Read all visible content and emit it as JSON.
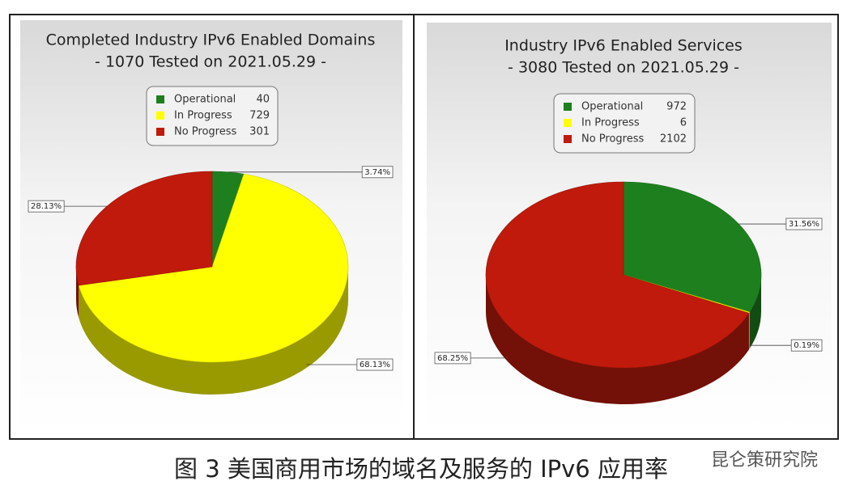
{
  "chart_data": [
    {
      "type": "pie3d",
      "title": "Completed Industry IPv6 Enabled Domains",
      "subtitle": "- 1070 Tested on 2021.05.29 -",
      "categories": [
        "Operational",
        "In Progress",
        "No Progress"
      ],
      "counts": [
        40,
        729,
        301
      ],
      "values": [
        3.74,
        68.13,
        28.13
      ],
      "value_labels": [
        "3.74%",
        "68.13%",
        "28.13%"
      ],
      "colors": [
        "#1e7f1e",
        "#ffff00",
        "#c01a0c"
      ]
    },
    {
      "type": "pie3d",
      "title": "Industry IPv6 Enabled Services",
      "subtitle": "- 3080 Tested on 2021.05.29 -",
      "categories": [
        "Operational",
        "In Progress",
        "No Progress"
      ],
      "counts": [
        972,
        6,
        2102
      ],
      "values": [
        31.56,
        0.19,
        68.25
      ],
      "value_labels": [
        "31.56%",
        "0.19%",
        "68.25%"
      ],
      "colors": [
        "#1e7f1e",
        "#ffff00",
        "#c01a0c"
      ]
    }
  ],
  "caption": "图 3 美国商用市场的域名及服务的 IPv6 应用率",
  "watermark": "昆仑策研究院"
}
